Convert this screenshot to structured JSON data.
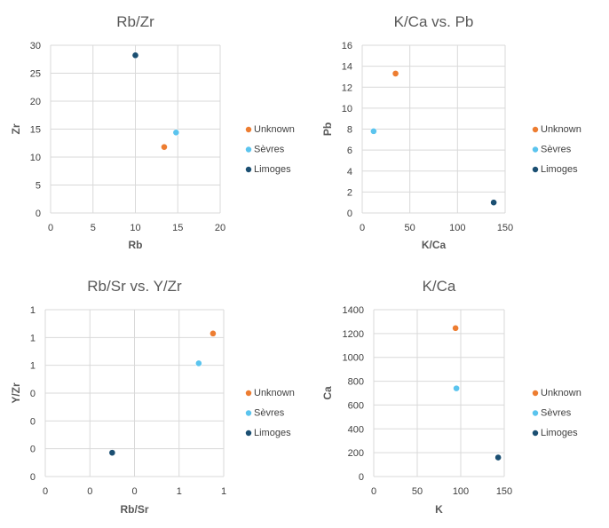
{
  "series_colors": {
    "Unknown": "#ed7d31",
    "Sèvres": "#5bc4ee",
    "Limoges": "#1b4f72"
  },
  "chart_data": [
    {
      "type": "scatter",
      "title": "Rb/Zr",
      "xlabel": "Rb",
      "ylabel": "Zr",
      "xlim": [
        0,
        20
      ],
      "ylim": [
        0,
        30
      ],
      "x_ticks": [
        "0",
        "5",
        "10",
        "15",
        "20"
      ],
      "y_ticks": [
        "0",
        "5",
        "10",
        "15",
        "20",
        "25",
        "30"
      ],
      "grid": true,
      "legend": "right",
      "series": [
        {
          "name": "Unknown",
          "x": [
            13.4
          ],
          "y": [
            11.8
          ]
        },
        {
          "name": "Sèvres",
          "x": [
            14.8
          ],
          "y": [
            14.4
          ]
        },
        {
          "name": "Limoges",
          "x": [
            10.0
          ],
          "y": [
            28.2
          ]
        }
      ]
    },
    {
      "type": "scatter",
      "title": "K/Ca vs. Pb",
      "xlabel": "K/Ca",
      "ylabel": "Pb",
      "xlim": [
        0,
        150
      ],
      "ylim": [
        0,
        16
      ],
      "x_ticks": [
        "0",
        "50",
        "100",
        "150"
      ],
      "y_ticks": [
        "0",
        "2",
        "4",
        "6",
        "8",
        "10",
        "12",
        "14",
        "16"
      ],
      "grid": true,
      "legend": "right",
      "series": [
        {
          "name": "Unknown",
          "x": [
            35
          ],
          "y": [
            13.3
          ]
        },
        {
          "name": "Sèvres",
          "x": [
            12
          ],
          "y": [
            7.8
          ]
        },
        {
          "name": "Limoges",
          "x": [
            138
          ],
          "y": [
            1.0
          ]
        }
      ]
    },
    {
      "type": "scatter",
      "title": "Rb/Sr vs. Y/Zr",
      "xlabel": "Rb/Sr",
      "ylabel": "Y/Zr",
      "xlim": [
        0,
        1
      ],
      "ylim": [
        0,
        1.4
      ],
      "x_ticks": [
        "0",
        "0",
        "0",
        "1",
        "1"
      ],
      "y_ticks": [
        "0",
        "0",
        "0",
        "0",
        "1",
        "1",
        "1"
      ],
      "grid": true,
      "legend": "right",
      "series": [
        {
          "name": "Unknown",
          "x": [
            0.94
          ],
          "y": [
            1.2
          ]
        },
        {
          "name": "Sèvres",
          "x": [
            0.86
          ],
          "y": [
            0.95
          ]
        },
        {
          "name": "Limoges",
          "x": [
            0.375
          ],
          "y": [
            0.2
          ]
        }
      ]
    },
    {
      "type": "scatter",
      "title": "K/Ca",
      "xlabel": "K",
      "ylabel": "Ca",
      "xlim": [
        0,
        150
      ],
      "ylim": [
        0,
        1400
      ],
      "x_ticks": [
        "0",
        "50",
        "100",
        "150"
      ],
      "y_ticks": [
        "0",
        "200",
        "400",
        "600",
        "800",
        "1000",
        "1200",
        "1400"
      ],
      "grid": true,
      "legend": "right",
      "series": [
        {
          "name": "Unknown",
          "x": [
            94
          ],
          "y": [
            1245
          ]
        },
        {
          "name": "Sèvres",
          "x": [
            95
          ],
          "y": [
            740
          ]
        },
        {
          "name": "Limoges",
          "x": [
            143
          ],
          "y": [
            160
          ]
        }
      ]
    }
  ]
}
